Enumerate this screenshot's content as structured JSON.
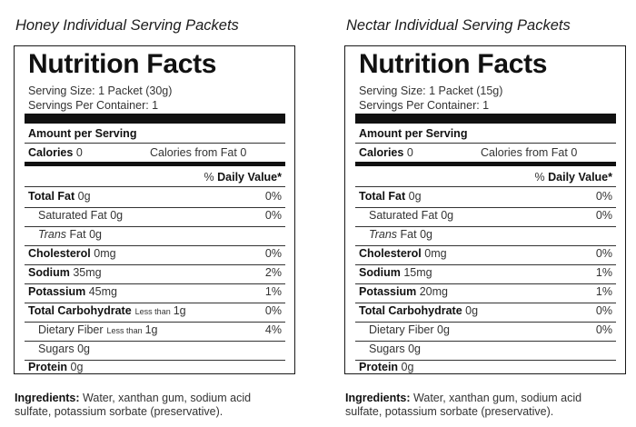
{
  "labels": [
    {
      "heading": "Honey Individual Serving Packets",
      "title": "Nutrition Facts",
      "serving_size": "Serving Size: 1 Packet (30g)",
      "servings_per_container": "Servings Per Container: 1",
      "amount_per_serving": "Amount per Serving",
      "calories_label": "Calories",
      "calories_value": "0",
      "calories_from_fat": "Calories from Fat 0",
      "daily_value_prefix": "% ",
      "daily_value_label": "Daily Value*",
      "total_fat": {
        "label": "Total Fat",
        "amount": "0g",
        "pct": "0%"
      },
      "saturated_fat": {
        "label": "Saturated Fat",
        "amount": "0g",
        "pct": "0%"
      },
      "trans_fat": {
        "label_italic": "Trans",
        "label_rest": "Fat",
        "amount": "0g"
      },
      "cholesterol": {
        "label": "Cholesterol",
        "amount": "0mg",
        "pct": "0%"
      },
      "sodium": {
        "label": "Sodium",
        "amount": "35mg",
        "pct": "2%"
      },
      "potassium": {
        "label": "Potassium",
        "amount": "45mg",
        "pct": "1%"
      },
      "total_carbohydrate": {
        "label": "Total Carbohydrate",
        "qualifier": "Less than",
        "amount": "1g",
        "pct": "0%"
      },
      "dietary_fiber": {
        "label": "Dietary Fiber",
        "qualifier": "Less than",
        "amount": "1g",
        "pct": "4%"
      },
      "sugars": {
        "label": "Sugars",
        "amount": "0g"
      },
      "protein": {
        "label": "Protein",
        "amount": "0g"
      },
      "ingredients_label": "Ingredients:",
      "ingredients_text": "Water, xanthan gum, sodium acid sulfate, potassium sorbate (preservative)."
    },
    {
      "heading": "Nectar Individual Serving Packets",
      "title": "Nutrition Facts",
      "serving_size": "Serving Size: 1 Packet (15g)",
      "servings_per_container": "Servings Per Container: 1",
      "amount_per_serving": "Amount per Serving",
      "calories_label": "Calories",
      "calories_value": "0",
      "calories_from_fat": "Calories from Fat 0",
      "daily_value_prefix": "% ",
      "daily_value_label": "Daily Value*",
      "total_fat": {
        "label": "Total Fat",
        "amount": "0g",
        "pct": "0%"
      },
      "saturated_fat": {
        "label": "Saturated Fat",
        "amount": "0g",
        "pct": "0%"
      },
      "trans_fat": {
        "label_italic": "Trans",
        "label_rest": "Fat",
        "amount": "0g"
      },
      "cholesterol": {
        "label": "Cholesterol",
        "amount": "0mg",
        "pct": "0%"
      },
      "sodium": {
        "label": "Sodium",
        "amount": "15mg",
        "pct": "1%"
      },
      "potassium": {
        "label": "Potassium",
        "amount": "20mg",
        "pct": "1%"
      },
      "total_carbohydrate": {
        "label": "Total Carbohydrate",
        "qualifier": "",
        "amount": "0g",
        "pct": "0%"
      },
      "dietary_fiber": {
        "label": "Dietary Fiber",
        "qualifier": "",
        "amount": "0g",
        "pct": "0%"
      },
      "sugars": {
        "label": "Sugars",
        "amount": "0g"
      },
      "protein": {
        "label": "Protein",
        "amount": "0g"
      },
      "ingredients_label": "Ingredients:",
      "ingredients_text": "Water, xanthan gum, sodium acid sulfate, potassium sorbate (preservative)."
    }
  ]
}
